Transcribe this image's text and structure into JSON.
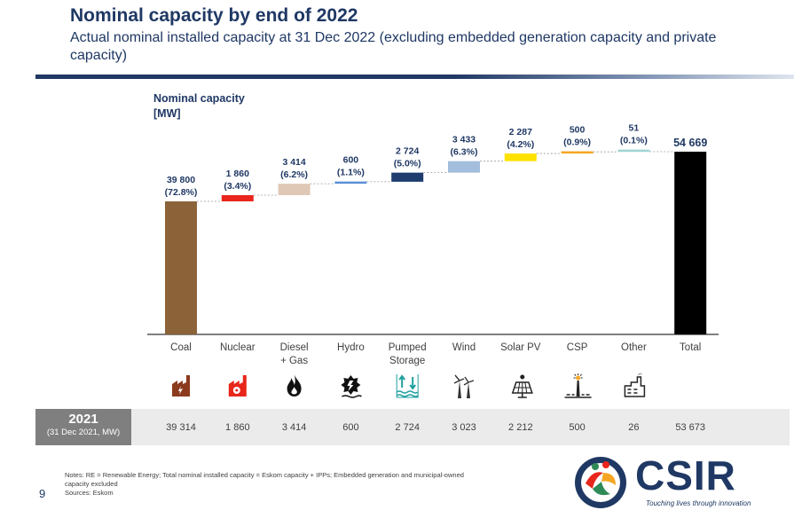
{
  "header": {
    "title": "Nominal capacity by end of 2022",
    "subtitle": "Actual nominal installed capacity at 31 Dec 2022 (excluding embedded generation capacity and private capacity)"
  },
  "chart_data": {
    "type": "bar",
    "subtype": "waterfall",
    "ylabel_line1": "Nominal capacity",
    "ylabel_line2": "[MW]",
    "categories": [
      "Coal",
      "Nuclear",
      "Diesel\n+ Gas",
      "Hydro",
      "Pumped\nStorage",
      "Wind",
      "Solar PV",
      "CSP",
      "Other",
      "Total"
    ],
    "values": [
      39800,
      1860,
      3414,
      600,
      2724,
      3433,
      2287,
      500,
      51,
      54669
    ],
    "value_labels": [
      "39 800",
      "1 860",
      "3 414",
      "600",
      "2 724",
      "3 433",
      "2 287",
      "500",
      "51",
      "54 669"
    ],
    "share_labels": [
      "(72.8%)",
      "(3.4%)",
      "(6.2%)",
      "(1.1%)",
      "(5.0%)",
      "(6.3%)",
      "(4.2%)",
      "(0.9%)",
      "(0.1%)",
      ""
    ],
    "colors": [
      "#8c6239",
      "#e8261b",
      "#e0c8b6",
      "#5b8fd6",
      "#1f3c6e",
      "#a3bddc",
      "#ffe200",
      "#f5a623",
      "#9fd4d4",
      "#000000"
    ],
    "icons": [
      "coal-plant-icon",
      "nuclear-plant-icon",
      "flame-icon",
      "hydro-icon",
      "pumped-storage-icon",
      "wind-turbine-icon",
      "solar-panel-icon",
      "csp-tower-icon",
      "other-plant-icon",
      ""
    ],
    "ylim": [
      0,
      54669
    ],
    "grid": false,
    "legend": "none"
  },
  "previous_year": {
    "year": "2021",
    "sub": "(31 Dec 2021, MW)",
    "values": [
      "39 314",
      "1 860",
      "3 414",
      "600",
      "2 724",
      "3 023",
      "2 212",
      "500",
      "26",
      "53 673"
    ]
  },
  "footer": {
    "notes_1": "Notes: RE = Renewable Energy; Total nominal installed capacity = Eskom capacity + IPPs; Embedded generation and municipal-owned",
    "notes_2": "capacity excluded",
    "notes_3": "Sources: Eskom",
    "page_number": "9",
    "logo_text": "CSIR",
    "logo_tagline": "Touching lives through innovation"
  }
}
